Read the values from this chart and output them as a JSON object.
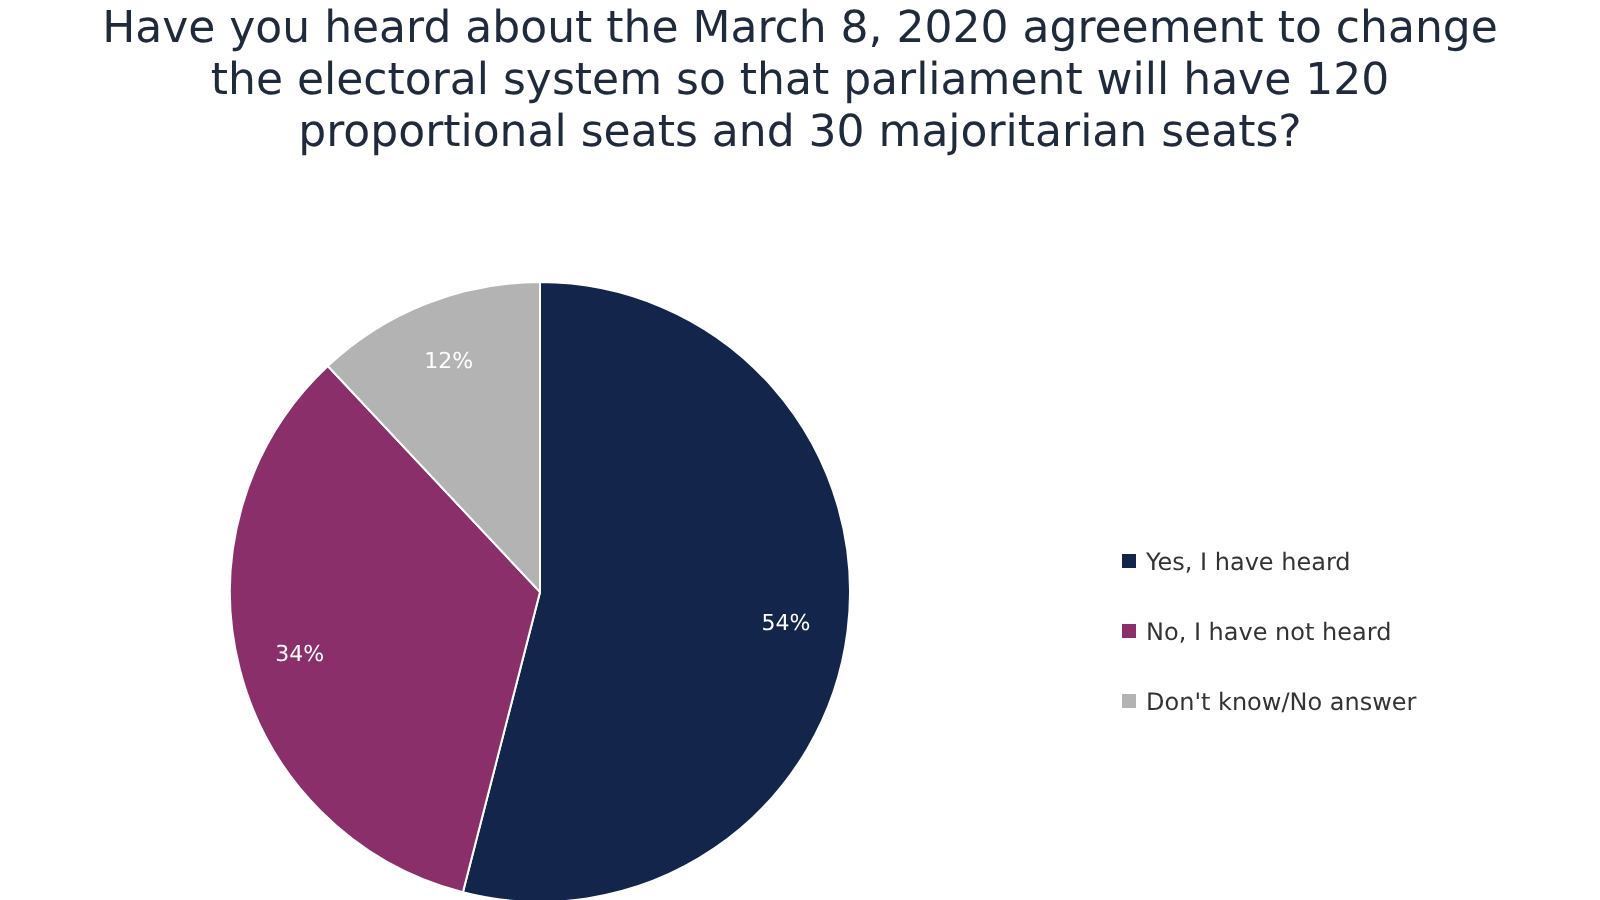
{
  "chart_data": {
    "type": "pie",
    "title": "Have you heard about the March 8, 2020 agreement to change the electoral system so that parliament will have 120 proportional seats and 30 majoritarian seats?",
    "categories": [
      "Yes, I have heard",
      "No, I have not heard",
      "Don't know/No answer"
    ],
    "values": [
      54,
      34,
      12
    ],
    "colors": [
      "#13254a",
      "#8b2f6b",
      "#b3b3b3"
    ],
    "value_labels": [
      "54%",
      "34%",
      "12%"
    ],
    "legend": "right"
  }
}
